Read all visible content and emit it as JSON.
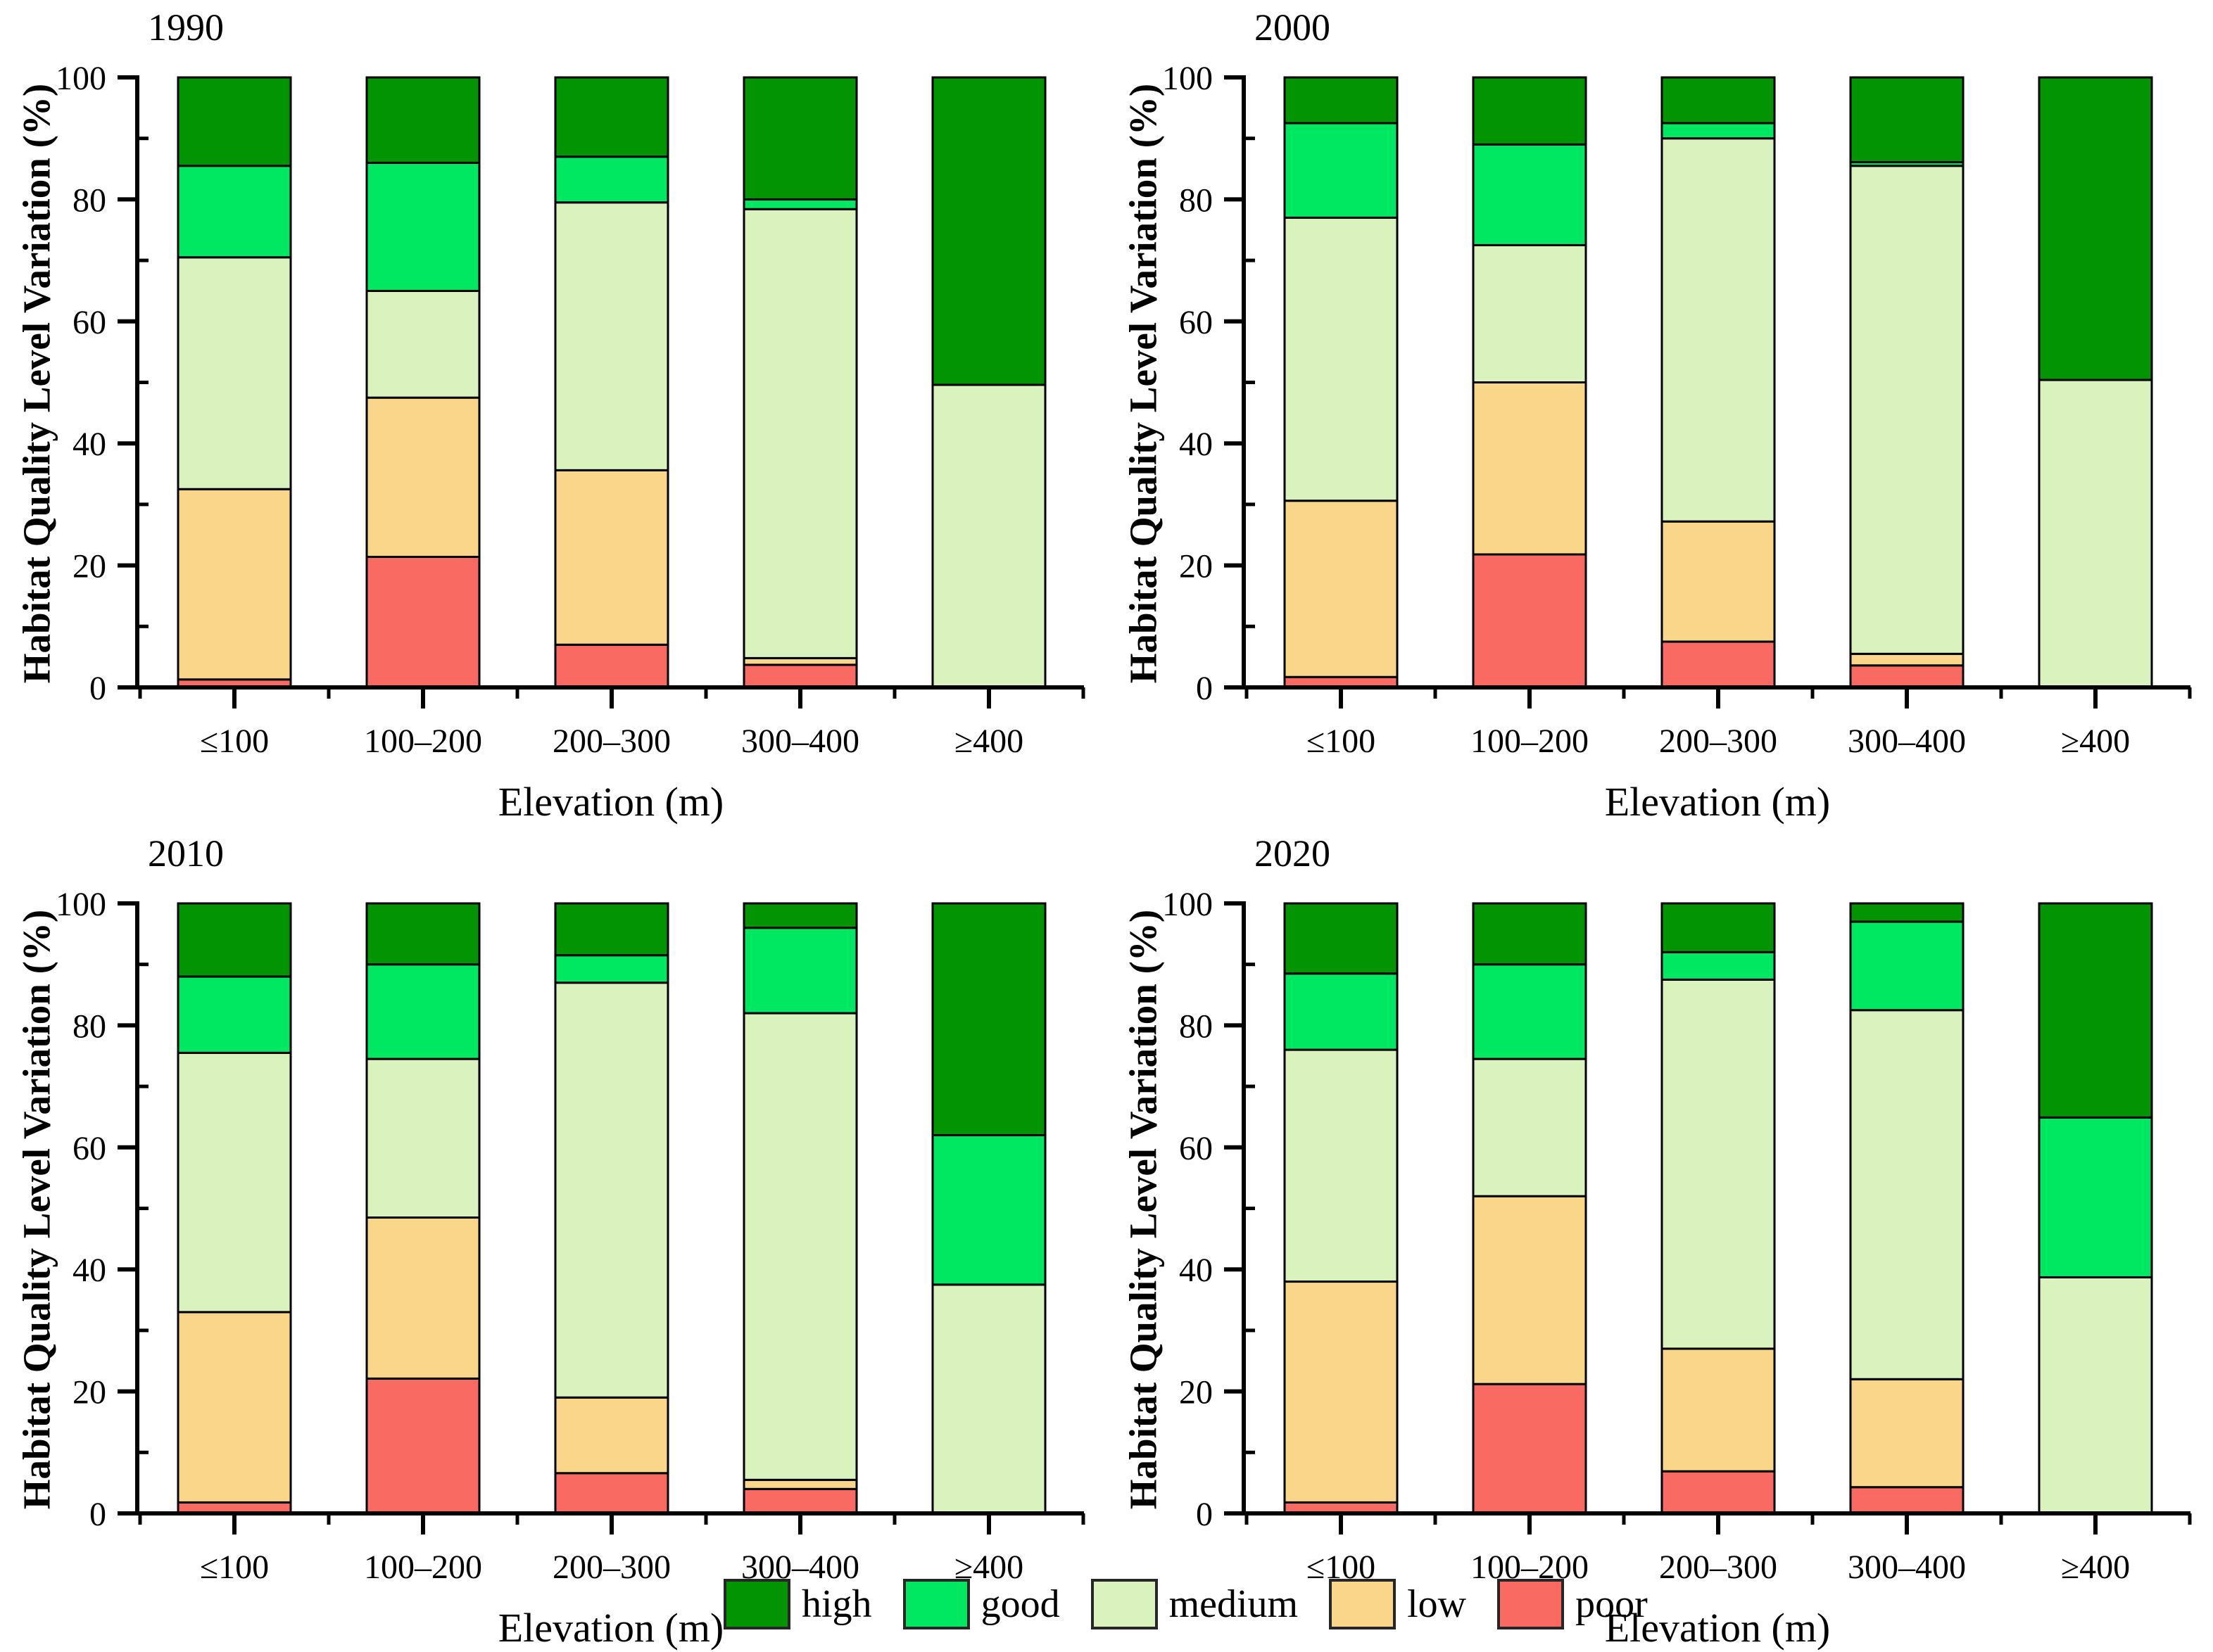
{
  "colors": {
    "high": "#029402",
    "good": "#00E761",
    "medium": "#D9F2BE",
    "low": "#F9D689",
    "poor": "#F96B62",
    "axis": "#000000"
  },
  "axes": {
    "ylabel": "Habitat Quality Level Variation (%)",
    "xlabel": "Elevation (m)",
    "ylim": [
      0,
      100
    ],
    "yticks": [
      0,
      20,
      40,
      60,
      80,
      100
    ],
    "yminor": [
      10,
      30,
      50,
      70,
      90
    ],
    "grid": "off"
  },
  "legend": {
    "position": "bottom-center",
    "items": [
      {
        "name": "high",
        "label": "high"
      },
      {
        "name": "good",
        "label": "good"
      },
      {
        "name": "medium",
        "label": "medium"
      },
      {
        "name": "low",
        "label": "low"
      },
      {
        "name": "poor",
        "label": "poor"
      }
    ]
  },
  "chart_data": [
    {
      "type": "bar",
      "stacked": true,
      "title": "1990",
      "categories": [
        "≤100",
        "100–200",
        "200–300",
        "300–400",
        "≥400"
      ],
      "series": [
        {
          "name": "poor",
          "values": [
            1.3,
            21.4,
            7.0,
            3.7,
            0
          ]
        },
        {
          "name": "low",
          "values": [
            31.2,
            26.1,
            28.6,
            1.1,
            0
          ]
        },
        {
          "name": "medium",
          "values": [
            38.0,
            17.5,
            43.9,
            73.6,
            49.6
          ]
        },
        {
          "name": "good",
          "values": [
            15.0,
            21.0,
            7.5,
            1.6,
            0
          ]
        },
        {
          "name": "high",
          "values": [
            14.5,
            14.0,
            13.0,
            20.0,
            50.4
          ]
        }
      ]
    },
    {
      "type": "bar",
      "stacked": true,
      "title": "2000",
      "categories": [
        "≤100",
        "100–200",
        "200–300",
        "300–400",
        "≥400"
      ],
      "series": [
        {
          "name": "poor",
          "values": [
            1.7,
            21.8,
            7.5,
            3.6,
            0
          ]
        },
        {
          "name": "low",
          "values": [
            28.9,
            28.2,
            19.7,
            1.9,
            0
          ]
        },
        {
          "name": "medium",
          "values": [
            46.4,
            22.5,
            62.8,
            80.0,
            50.4
          ]
        },
        {
          "name": "good",
          "values": [
            15.5,
            16.5,
            2.5,
            0.6,
            0
          ]
        },
        {
          "name": "high",
          "values": [
            7.5,
            11.0,
            7.5,
            13.9,
            49.6
          ]
        }
      ]
    },
    {
      "type": "bar",
      "stacked": true,
      "title": "2010",
      "categories": [
        "≤100",
        "100–200",
        "200–300",
        "300–400",
        "≥400"
      ],
      "series": [
        {
          "name": "poor",
          "values": [
            1.8,
            22.1,
            6.6,
            4.0,
            0
          ]
        },
        {
          "name": "low",
          "values": [
            31.2,
            26.4,
            12.4,
            1.5,
            0
          ]
        },
        {
          "name": "medium",
          "values": [
            42.5,
            26.0,
            68.0,
            76.5,
            37.5
          ]
        },
        {
          "name": "good",
          "values": [
            12.5,
            15.5,
            4.5,
            14.0,
            24.5
          ]
        },
        {
          "name": "high",
          "values": [
            12.0,
            10.0,
            8.5,
            4.0,
            38.0
          ]
        }
      ]
    },
    {
      "type": "bar",
      "stacked": true,
      "title": "2020",
      "categories": [
        "≤100",
        "100–200",
        "200–300",
        "300–400",
        "≥400"
      ],
      "series": [
        {
          "name": "poor",
          "values": [
            1.8,
            21.2,
            6.9,
            4.3,
            0
          ]
        },
        {
          "name": "low",
          "values": [
            36.2,
            30.8,
            20.1,
            17.7,
            0
          ]
        },
        {
          "name": "medium",
          "values": [
            38.0,
            22.5,
            60.5,
            60.5,
            38.7
          ]
        },
        {
          "name": "good",
          "values": [
            12.5,
            15.5,
            4.5,
            14.5,
            26.2
          ]
        },
        {
          "name": "high",
          "values": [
            11.5,
            10.0,
            8.0,
            3.0,
            35.1
          ]
        }
      ]
    }
  ]
}
